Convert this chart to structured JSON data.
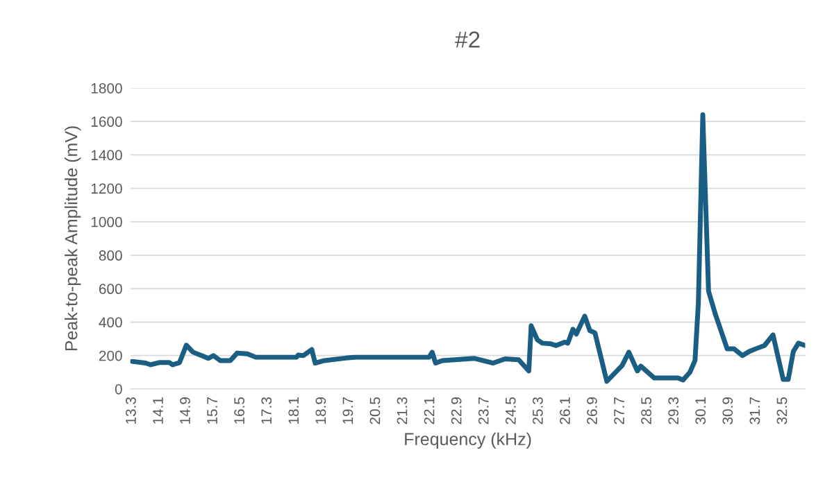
{
  "chart_data": {
    "type": "line",
    "title": "#2",
    "xlabel": "Frequency (kHz)",
    "ylabel": "Peak-to-peak Amplitude (mV)",
    "x": [
      13.3,
      13.7,
      13.85,
      14.1,
      14.4,
      14.5,
      14.7,
      14.9,
      15.1,
      15.35,
      15.55,
      15.7,
      15.9,
      16.2,
      16.4,
      16.7,
      16.95,
      17.1,
      18.15,
      18.2,
      18.35,
      18.6,
      18.7,
      18.97,
      19.6,
      19.9,
      22.06,
      22.15,
      22.25,
      22.45,
      23.4,
      23.95,
      24.3,
      24.7,
      25.0,
      25.07,
      25.25,
      25.4,
      25.65,
      25.8,
      26.05,
      26.15,
      26.3,
      26.4,
      26.65,
      26.8,
      26.95,
      27.3,
      27.75,
      27.95,
      28.2,
      28.3,
      28.7,
      29.4,
      29.55,
      29.75,
      29.9,
      30.0,
      30.13,
      30.3,
      30.5,
      30.85,
      31.05,
      31.3,
      31.5,
      31.75,
      31.95,
      32.2,
      32.5,
      32.65,
      32.8,
      32.95,
      33.15
    ],
    "series": [
      {
        "color": "#1b5e83",
        "values": [
          165,
          155,
          145,
          158,
          158,
          145,
          158,
          262,
          220,
          200,
          183,
          200,
          170,
          170,
          215,
          210,
          190,
          190,
          190,
          203,
          200,
          236,
          155,
          170,
          185,
          190,
          190,
          220,
          155,
          170,
          183,
          155,
          180,
          175,
          108,
          378,
          295,
          274,
          270,
          260,
          280,
          274,
          357,
          328,
          436,
          349,
          336,
          46,
          140,
          220,
          108,
          137,
          66,
          66,
          54,
          100,
          170,
          515,
          1640,
          585,
          448,
          240,
          240,
          200,
          225,
          245,
          260,
          324,
          58,
          58,
          224,
          274,
          260
        ]
      }
    ],
    "xlim": [
      13.25,
      33.15
    ],
    "xticks": [
      13.3,
      14.1,
      14.9,
      15.7,
      16.5,
      17.3,
      18.1,
      18.9,
      19.7,
      20.5,
      21.3,
      22.1,
      22.9,
      23.7,
      24.5,
      25.3,
      26.1,
      26.9,
      27.7,
      28.5,
      29.3,
      30.1,
      30.9,
      31.7,
      32.5
    ],
    "ylim": [
      0,
      1800
    ],
    "yticks": [
      0,
      200,
      400,
      600,
      800,
      1000,
      1200,
      1400,
      1600,
      1800
    ],
    "grid": "y",
    "marker": "none",
    "line_style": "solid"
  }
}
